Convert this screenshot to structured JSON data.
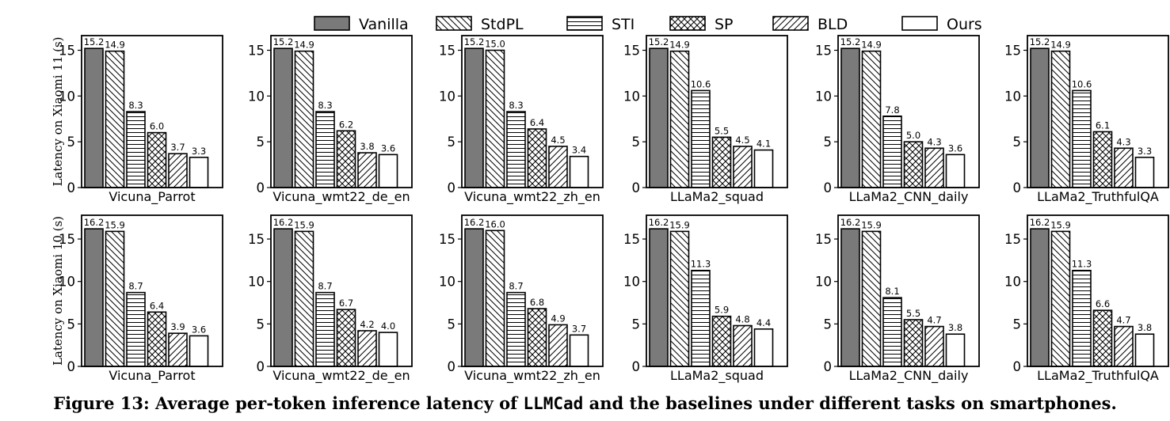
{
  "caption": {
    "prefix": "Figure 13: Average per-token inference latency of ",
    "system": "LLMCad",
    "suffix": " and the baselines under different tasks on smartphones."
  },
  "legend": [
    "Vanilla",
    "StdPL",
    "STI",
    "SP",
    "BLD",
    "Ours"
  ],
  "colors": {
    "vanilla_fill": "#7a7a7a",
    "other_fill": "#ffffff",
    "stroke": "#000000"
  },
  "chart_data": [
    {
      "type": "bar",
      "row": 0,
      "ylabel": "Latency on Xiaomi 11 (s)",
      "xlabel": "Vicuna_Parrot",
      "ylim": [
        0,
        16.6
      ],
      "yticks": [
        0,
        5,
        10,
        15
      ],
      "series": [
        {
          "name": "Vanilla",
          "value": 15.2
        },
        {
          "name": "StdPL",
          "value": 14.9
        },
        {
          "name": "STI",
          "value": 8.3
        },
        {
          "name": "SP",
          "value": 6.0
        },
        {
          "name": "BLD",
          "value": 3.7
        },
        {
          "name": "Ours",
          "value": 3.3
        }
      ]
    },
    {
      "type": "bar",
      "row": 0,
      "ylabel": "",
      "xlabel": "Vicuna_wmt22_de_en",
      "ylim": [
        0,
        16.6
      ],
      "yticks": [
        0,
        5,
        10,
        15
      ],
      "series": [
        {
          "name": "Vanilla",
          "value": 15.2
        },
        {
          "name": "StdPL",
          "value": 14.9
        },
        {
          "name": "STI",
          "value": 8.3
        },
        {
          "name": "SP",
          "value": 6.2
        },
        {
          "name": "BLD",
          "value": 3.8
        },
        {
          "name": "Ours",
          "value": 3.6
        }
      ]
    },
    {
      "type": "bar",
      "row": 0,
      "ylabel": "",
      "xlabel": "Vicuna_wmt22_zh_en",
      "ylim": [
        0,
        16.6
      ],
      "yticks": [
        0,
        5,
        10,
        15
      ],
      "series": [
        {
          "name": "Vanilla",
          "value": 15.2
        },
        {
          "name": "StdPL",
          "value": 15.0
        },
        {
          "name": "STI",
          "value": 8.3
        },
        {
          "name": "SP",
          "value": 6.4
        },
        {
          "name": "BLD",
          "value": 4.5
        },
        {
          "name": "Ours",
          "value": 3.4
        }
      ]
    },
    {
      "type": "bar",
      "row": 0,
      "ylabel": "",
      "xlabel": "LLaMa2_squad",
      "ylim": [
        0,
        16.6
      ],
      "yticks": [
        0,
        5,
        10,
        15
      ],
      "series": [
        {
          "name": "Vanilla",
          "value": 15.2
        },
        {
          "name": "StdPL",
          "value": 14.9
        },
        {
          "name": "STI",
          "value": 10.6
        },
        {
          "name": "SP",
          "value": 5.5
        },
        {
          "name": "BLD",
          "value": 4.5
        },
        {
          "name": "Ours",
          "value": 4.1
        }
      ]
    },
    {
      "type": "bar",
      "row": 0,
      "ylabel": "",
      "xlabel": "LLaMa2_CNN_daily",
      "ylim": [
        0,
        16.6
      ],
      "yticks": [
        0,
        5,
        10,
        15
      ],
      "series": [
        {
          "name": "Vanilla",
          "value": 15.2
        },
        {
          "name": "StdPL",
          "value": 14.9
        },
        {
          "name": "STI",
          "value": 7.8
        },
        {
          "name": "SP",
          "value": 5.0
        },
        {
          "name": "BLD",
          "value": 4.3
        },
        {
          "name": "Ours",
          "value": 3.6
        }
      ]
    },
    {
      "type": "bar",
      "row": 0,
      "ylabel": "",
      "xlabel": "LLaMa2_TruthfulQA",
      "ylim": [
        0,
        16.6
      ],
      "yticks": [
        0,
        5,
        10,
        15
      ],
      "series": [
        {
          "name": "Vanilla",
          "value": 15.2
        },
        {
          "name": "StdPL",
          "value": 14.9
        },
        {
          "name": "STI",
          "value": 10.6
        },
        {
          "name": "SP",
          "value": 6.1
        },
        {
          "name": "BLD",
          "value": 4.3
        },
        {
          "name": "Ours",
          "value": 3.3
        }
      ]
    },
    {
      "type": "bar",
      "row": 1,
      "ylabel": "Latency on Xiaomi 10 (s)",
      "xlabel": "Vicuna_Parrot",
      "ylim": [
        0,
        17.8
      ],
      "yticks": [
        0,
        5,
        10,
        15
      ],
      "series": [
        {
          "name": "Vanilla",
          "value": 16.2
        },
        {
          "name": "StdPL",
          "value": 15.9
        },
        {
          "name": "STI",
          "value": 8.7
        },
        {
          "name": "SP",
          "value": 6.4
        },
        {
          "name": "BLD",
          "value": 3.9
        },
        {
          "name": "Ours",
          "value": 3.6
        }
      ]
    },
    {
      "type": "bar",
      "row": 1,
      "ylabel": "",
      "xlabel": "Vicuna_wmt22_de_en",
      "ylim": [
        0,
        17.8
      ],
      "yticks": [
        0,
        5,
        10,
        15
      ],
      "series": [
        {
          "name": "Vanilla",
          "value": 16.2
        },
        {
          "name": "StdPL",
          "value": 15.9
        },
        {
          "name": "STI",
          "value": 8.7
        },
        {
          "name": "SP",
          "value": 6.7
        },
        {
          "name": "BLD",
          "value": 4.2
        },
        {
          "name": "Ours",
          "value": 4.0
        }
      ]
    },
    {
      "type": "bar",
      "row": 1,
      "ylabel": "",
      "xlabel": "Vicuna_wmt22_zh_en",
      "ylim": [
        0,
        17.8
      ],
      "yticks": [
        0,
        5,
        10,
        15
      ],
      "series": [
        {
          "name": "Vanilla",
          "value": 16.2
        },
        {
          "name": "StdPL",
          "value": 16.0
        },
        {
          "name": "STI",
          "value": 8.7
        },
        {
          "name": "SP",
          "value": 6.8
        },
        {
          "name": "BLD",
          "value": 4.9
        },
        {
          "name": "Ours",
          "value": 3.7
        }
      ]
    },
    {
      "type": "bar",
      "row": 1,
      "ylabel": "",
      "xlabel": "LLaMa2_squad",
      "ylim": [
        0,
        17.8
      ],
      "yticks": [
        0,
        5,
        10,
        15
      ],
      "series": [
        {
          "name": "Vanilla",
          "value": 16.2
        },
        {
          "name": "StdPL",
          "value": 15.9
        },
        {
          "name": "STI",
          "value": 11.3
        },
        {
          "name": "SP",
          "value": 5.9
        },
        {
          "name": "BLD",
          "value": 4.8
        },
        {
          "name": "Ours",
          "value": 4.4
        }
      ]
    },
    {
      "type": "bar",
      "row": 1,
      "ylabel": "",
      "xlabel": "LLaMa2_CNN_daily",
      "ylim": [
        0,
        17.8
      ],
      "yticks": [
        0,
        5,
        10,
        15
      ],
      "series": [
        {
          "name": "Vanilla",
          "value": 16.2
        },
        {
          "name": "StdPL",
          "value": 15.9
        },
        {
          "name": "STI",
          "value": 8.1
        },
        {
          "name": "SP",
          "value": 5.5
        },
        {
          "name": "BLD",
          "value": 4.7
        },
        {
          "name": "Ours",
          "value": 3.8
        }
      ]
    },
    {
      "type": "bar",
      "row": 1,
      "ylabel": "",
      "xlabel": "LLaMa2_TruthfulQA",
      "ylim": [
        0,
        17.8
      ],
      "yticks": [
        0,
        5,
        10,
        15
      ],
      "series": [
        {
          "name": "Vanilla",
          "value": 16.2
        },
        {
          "name": "StdPL",
          "value": 15.9
        },
        {
          "name": "STI",
          "value": 11.3
        },
        {
          "name": "SP",
          "value": 6.6
        },
        {
          "name": "BLD",
          "value": 4.7
        },
        {
          "name": "Ours",
          "value": 3.8
        }
      ]
    }
  ]
}
